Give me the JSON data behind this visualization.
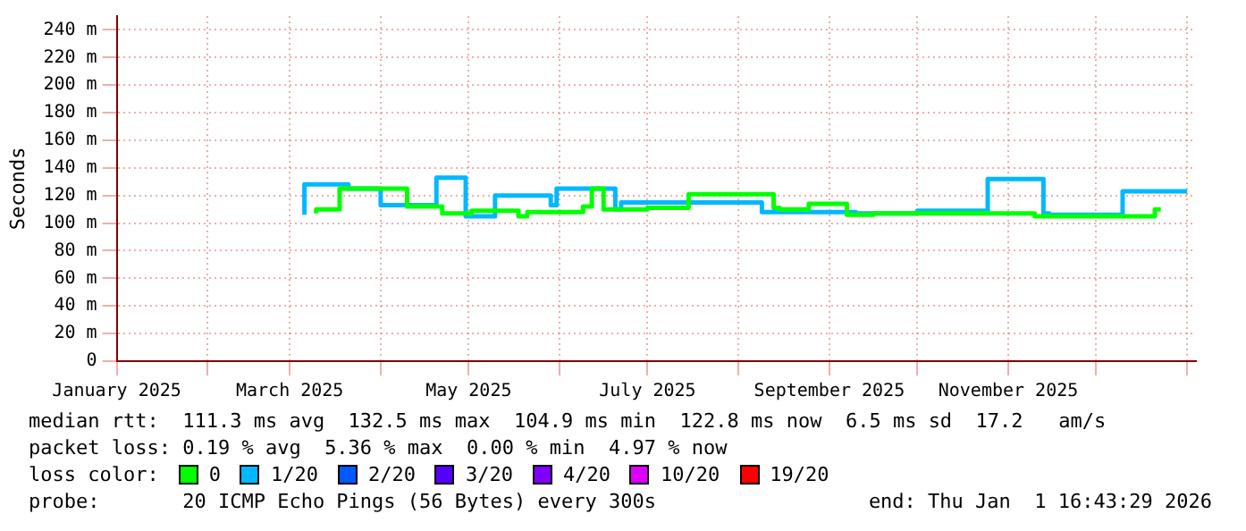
{
  "chart_data": {
    "type": "step",
    "ylabel": "Seconds",
    "series": [
      {
        "name": "0",
        "color": "#00ff00",
        "x": [
          "2025-03-10",
          "2025-03-18",
          "2025-03-23",
          "2025-04-10",
          "2025-04-22",
          "2025-05-02",
          "2025-05-18",
          "2025-05-21",
          "2025-06-09",
          "2025-06-12",
          "2025-06-16",
          "2025-07-01",
          "2025-07-15",
          "2025-08-13",
          "2025-08-15",
          "2025-08-25",
          "2025-09-07",
          "2025-09-16",
          "2025-10-16",
          "2025-11-10",
          "2025-11-26",
          "2025-12-21",
          "2025-12-23"
        ],
        "values": [
          107,
          110,
          125,
          125,
          112,
          107,
          109,
          105,
          108,
          112,
          125,
          110,
          111,
          121,
          111,
          110,
          114,
          106,
          107,
          107,
          105,
          105,
          110
        ]
      },
      {
        "name": "1/20",
        "color": "#00b8ff",
        "x": [
          "2025-03-06",
          "2025-03-21",
          "2025-04-01",
          "2025-04-20",
          "2025-04-30",
          "2025-05-10",
          "2025-05-29",
          "2025-05-31",
          "2025-06-20",
          "2025-06-22",
          "2025-08-09",
          "2025-09-10",
          "2025-10-01",
          "2025-10-25",
          "2025-11-13",
          "2025-11-15",
          "2025-12-10",
          "2026-01-01"
        ],
        "values": [
          106,
          128,
          125,
          113,
          133,
          105,
          120,
          113,
          125,
          110,
          115,
          108,
          107,
          109,
          132,
          107,
          106,
          123
        ]
      },
      {
        "name": "2/20",
        "color": "#0059ff"
      },
      {
        "name": "3/20",
        "color": "#5500ff"
      },
      {
        "name": "4/20",
        "color": "#7e00ff"
      },
      {
        "name": "10/20",
        "color": "#dd00ff"
      },
      {
        "name": "19/20",
        "color": "#ff0000"
      }
    ],
    "legend": "bottom",
    "legend_title": "loss color:",
    "grid": true,
    "xlim": [
      "2025-01-01",
      "2026-01-04"
    ],
    "xticks": [
      {
        "value": "2025-01-01",
        "label": "January 2025"
      },
      {
        "value": "2025-02-01",
        "label": null
      },
      {
        "value": "2025-03-01",
        "label": "March 2025"
      },
      {
        "value": "2025-04-01",
        "label": null
      },
      {
        "value": "2025-05-01",
        "label": "May 2025"
      },
      {
        "value": "2025-06-01",
        "label": null
      },
      {
        "value": "2025-07-01",
        "label": "July 2025"
      },
      {
        "value": "2025-08-01",
        "label": null
      },
      {
        "value": "2025-09-01",
        "label": "September 2025"
      },
      {
        "value": "2025-10-01",
        "label": null
      },
      {
        "value": "2025-11-01",
        "label": "November 2025"
      },
      {
        "value": "2025-12-01",
        "label": null
      },
      {
        "value": "2026-01-01",
        "label": null
      }
    ],
    "ylim": [
      0,
      250
    ],
    "yticks": [
      0,
      {
        "value": 20,
        "label": "20 m"
      },
      {
        "value": 40,
        "label": "40 m"
      },
      {
        "value": 60,
        "label": "60 m"
      },
      {
        "value": 80,
        "label": "80 m"
      },
      {
        "value": 100,
        "label": "100 m"
      },
      {
        "value": 120,
        "label": "120 m"
      },
      {
        "value": 140,
        "label": "140 m"
      },
      {
        "value": 160,
        "label": "160 m"
      },
      {
        "value": 180,
        "label": "180 m"
      },
      {
        "value": 200,
        "label": "200 m"
      },
      {
        "value": 220,
        "label": "220 m"
      },
      {
        "value": 240,
        "label": "240 m"
      }
    ],
    "annotations": [
      "median rtt:  111.3 ms avg  132.5 ms max  104.9 ms min  122.8 ms now  6.5 ms sd  17.2   am/s",
      "packet loss: 0.19 % avg  5.36 % max  0.00 % min  4.97 % now",
      "probe:       20 ICMP Echo Pings (56 Bytes) every 300s",
      "end: Thu Jan  1 16:43:29 2026"
    ]
  }
}
